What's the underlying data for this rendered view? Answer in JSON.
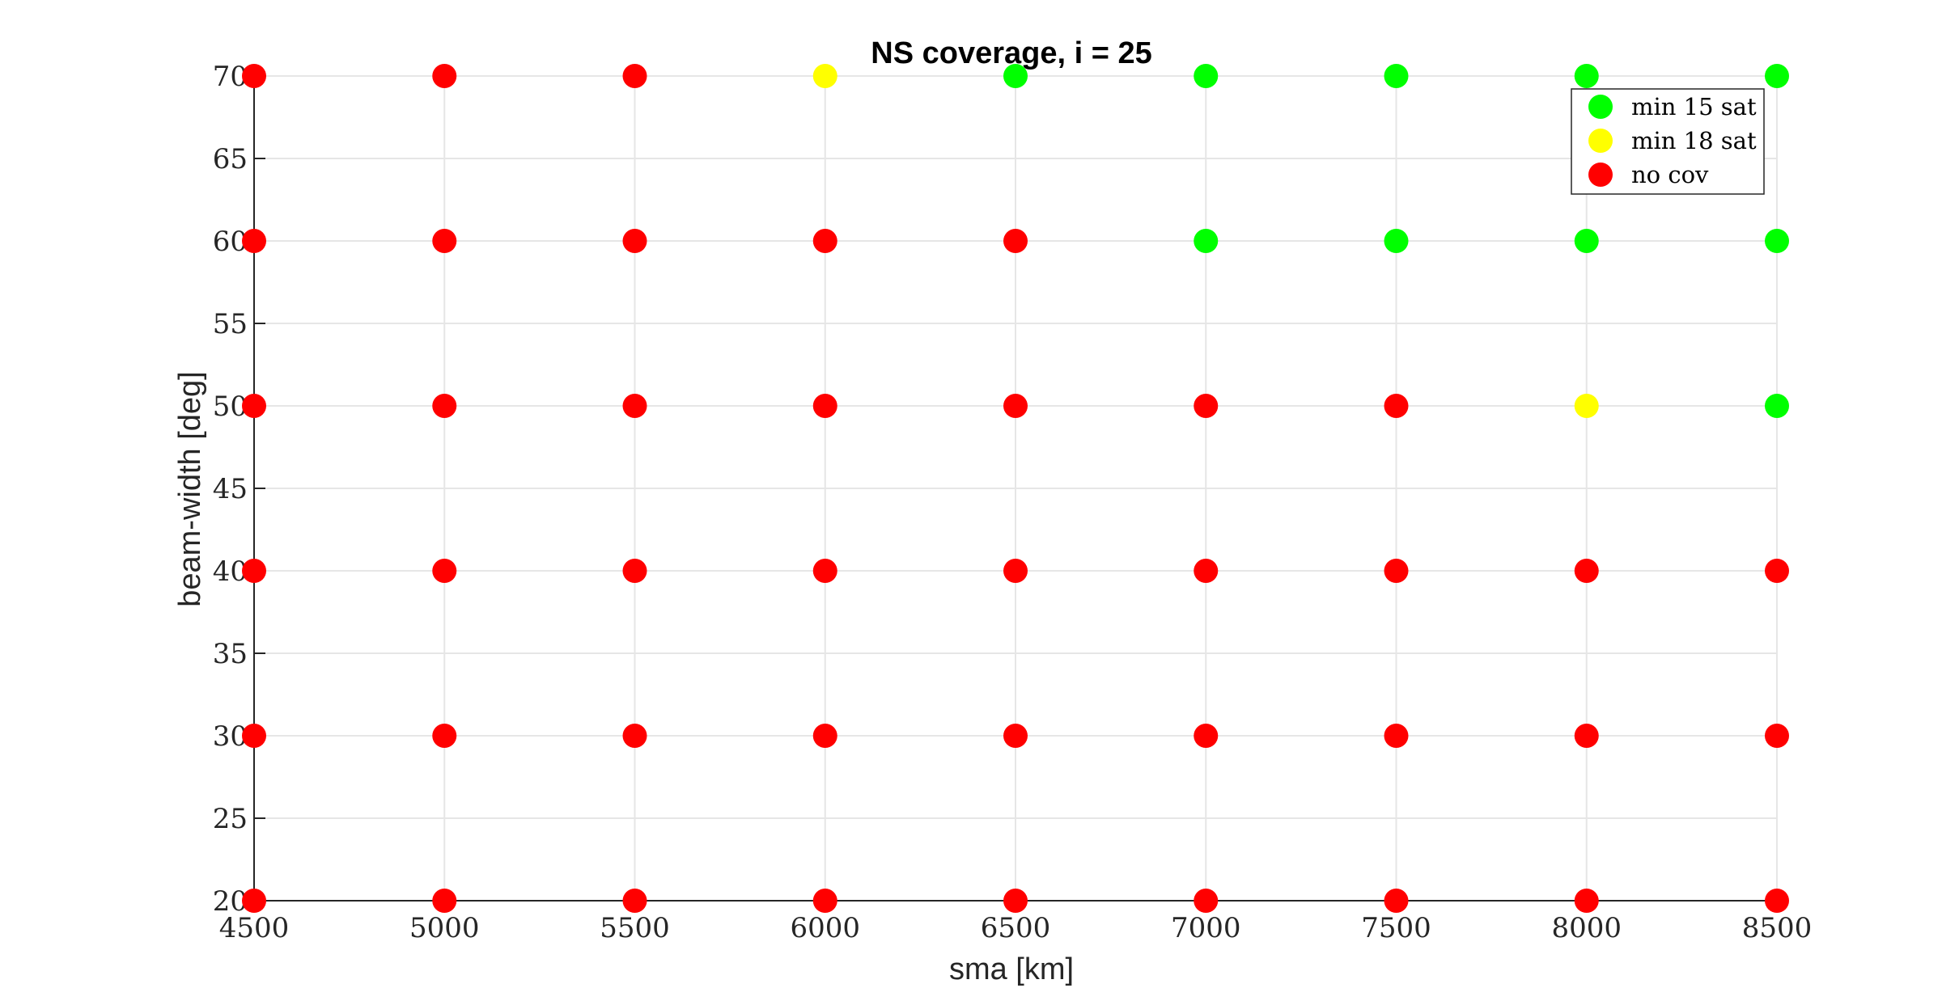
{
  "chart_data": {
    "type": "scatter",
    "title": "NS coverage, i = 25",
    "xlabel": "sma [km]",
    "ylabel": "beam-width [deg]",
    "xlim": [
      4500,
      8500
    ],
    "ylim": [
      20,
      70
    ],
    "xticks": [
      4500,
      5000,
      5500,
      6000,
      6500,
      7000,
      7500,
      8000,
      8500
    ],
    "yticks": [
      20,
      25,
      30,
      35,
      40,
      45,
      50,
      55,
      60,
      65,
      70
    ],
    "grid": true,
    "legend_position": "top-right",
    "series": [
      {
        "name": "min 15 sat",
        "color": "#00ff00",
        "points": [
          [
            6500,
            70
          ],
          [
            7000,
            70
          ],
          [
            7500,
            70
          ],
          [
            8000,
            70
          ],
          [
            8500,
            70
          ],
          [
            7000,
            60
          ],
          [
            7500,
            60
          ],
          [
            8000,
            60
          ],
          [
            8500,
            60
          ],
          [
            8500,
            50
          ]
        ]
      },
      {
        "name": "min 18 sat",
        "color": "#ffff00",
        "points": [
          [
            6000,
            70
          ],
          [
            8000,
            50
          ]
        ]
      },
      {
        "name": "no cov",
        "color": "#ff0000",
        "points": [
          [
            4500,
            70
          ],
          [
            5000,
            70
          ],
          [
            5500,
            70
          ],
          [
            4500,
            60
          ],
          [
            5000,
            60
          ],
          [
            5500,
            60
          ],
          [
            6000,
            60
          ],
          [
            6500,
            60
          ],
          [
            4500,
            50
          ],
          [
            5000,
            50
          ],
          [
            5500,
            50
          ],
          [
            6000,
            50
          ],
          [
            6500,
            50
          ],
          [
            7000,
            50
          ],
          [
            7500,
            50
          ],
          [
            4500,
            40
          ],
          [
            5000,
            40
          ],
          [
            5500,
            40
          ],
          [
            6000,
            40
          ],
          [
            6500,
            40
          ],
          [
            7000,
            40
          ],
          [
            7500,
            40
          ],
          [
            8000,
            40
          ],
          [
            8500,
            40
          ],
          [
            4500,
            30
          ],
          [
            5000,
            30
          ],
          [
            5500,
            30
          ],
          [
            6000,
            30
          ],
          [
            6500,
            30
          ],
          [
            7000,
            30
          ],
          [
            7500,
            30
          ],
          [
            8000,
            30
          ],
          [
            8500,
            30
          ],
          [
            4500,
            20
          ],
          [
            5000,
            20
          ],
          [
            5500,
            20
          ],
          [
            6000,
            20
          ],
          [
            6500,
            20
          ],
          [
            7000,
            20
          ],
          [
            7500,
            20
          ],
          [
            8000,
            20
          ],
          [
            8500,
            20
          ]
        ]
      }
    ]
  }
}
